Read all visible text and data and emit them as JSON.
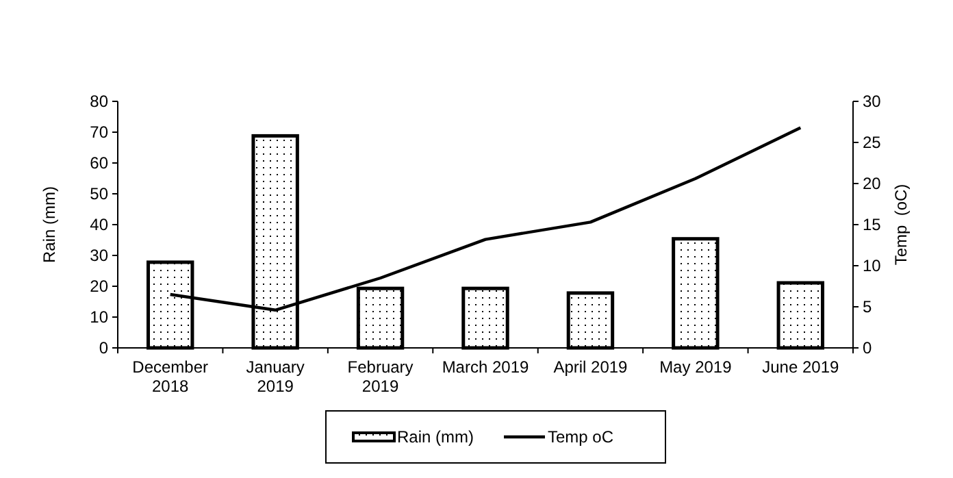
{
  "chart_data": {
    "type": "bar",
    "ylabel": "Rain (mm)",
    "y2label": "Temp  (oC)",
    "categories": [
      "December\n2018",
      "January\n2019",
      "February\n2019",
      "March 2019",
      "April 2019",
      "May 2019",
      "June 2019"
    ],
    "series": [
      {
        "name": "Rain (mm)",
        "color": "#000000",
        "values": [
          27.8,
          68.8,
          19.3,
          19.3,
          17.8,
          35.4,
          21.1
        ]
      },
      {
        "name": "Temp oC",
        "type": "line",
        "axis": "y2",
        "color": "#000000",
        "values": [
          6.5,
          4.6,
          8.5,
          13.2,
          15.3,
          20.6,
          26.8
        ]
      }
    ],
    "ylim": [
      0,
      80
    ],
    "yticks": [
      0,
      10,
      20,
      30,
      40,
      50,
      60,
      70,
      80
    ],
    "y2lim": [
      0,
      30
    ],
    "y2ticks": [
      0,
      5,
      10,
      15,
      20,
      25,
      30
    ],
    "legend": "bottom",
    "grid": false,
    "marker": "none",
    "line_style": "solid"
  }
}
